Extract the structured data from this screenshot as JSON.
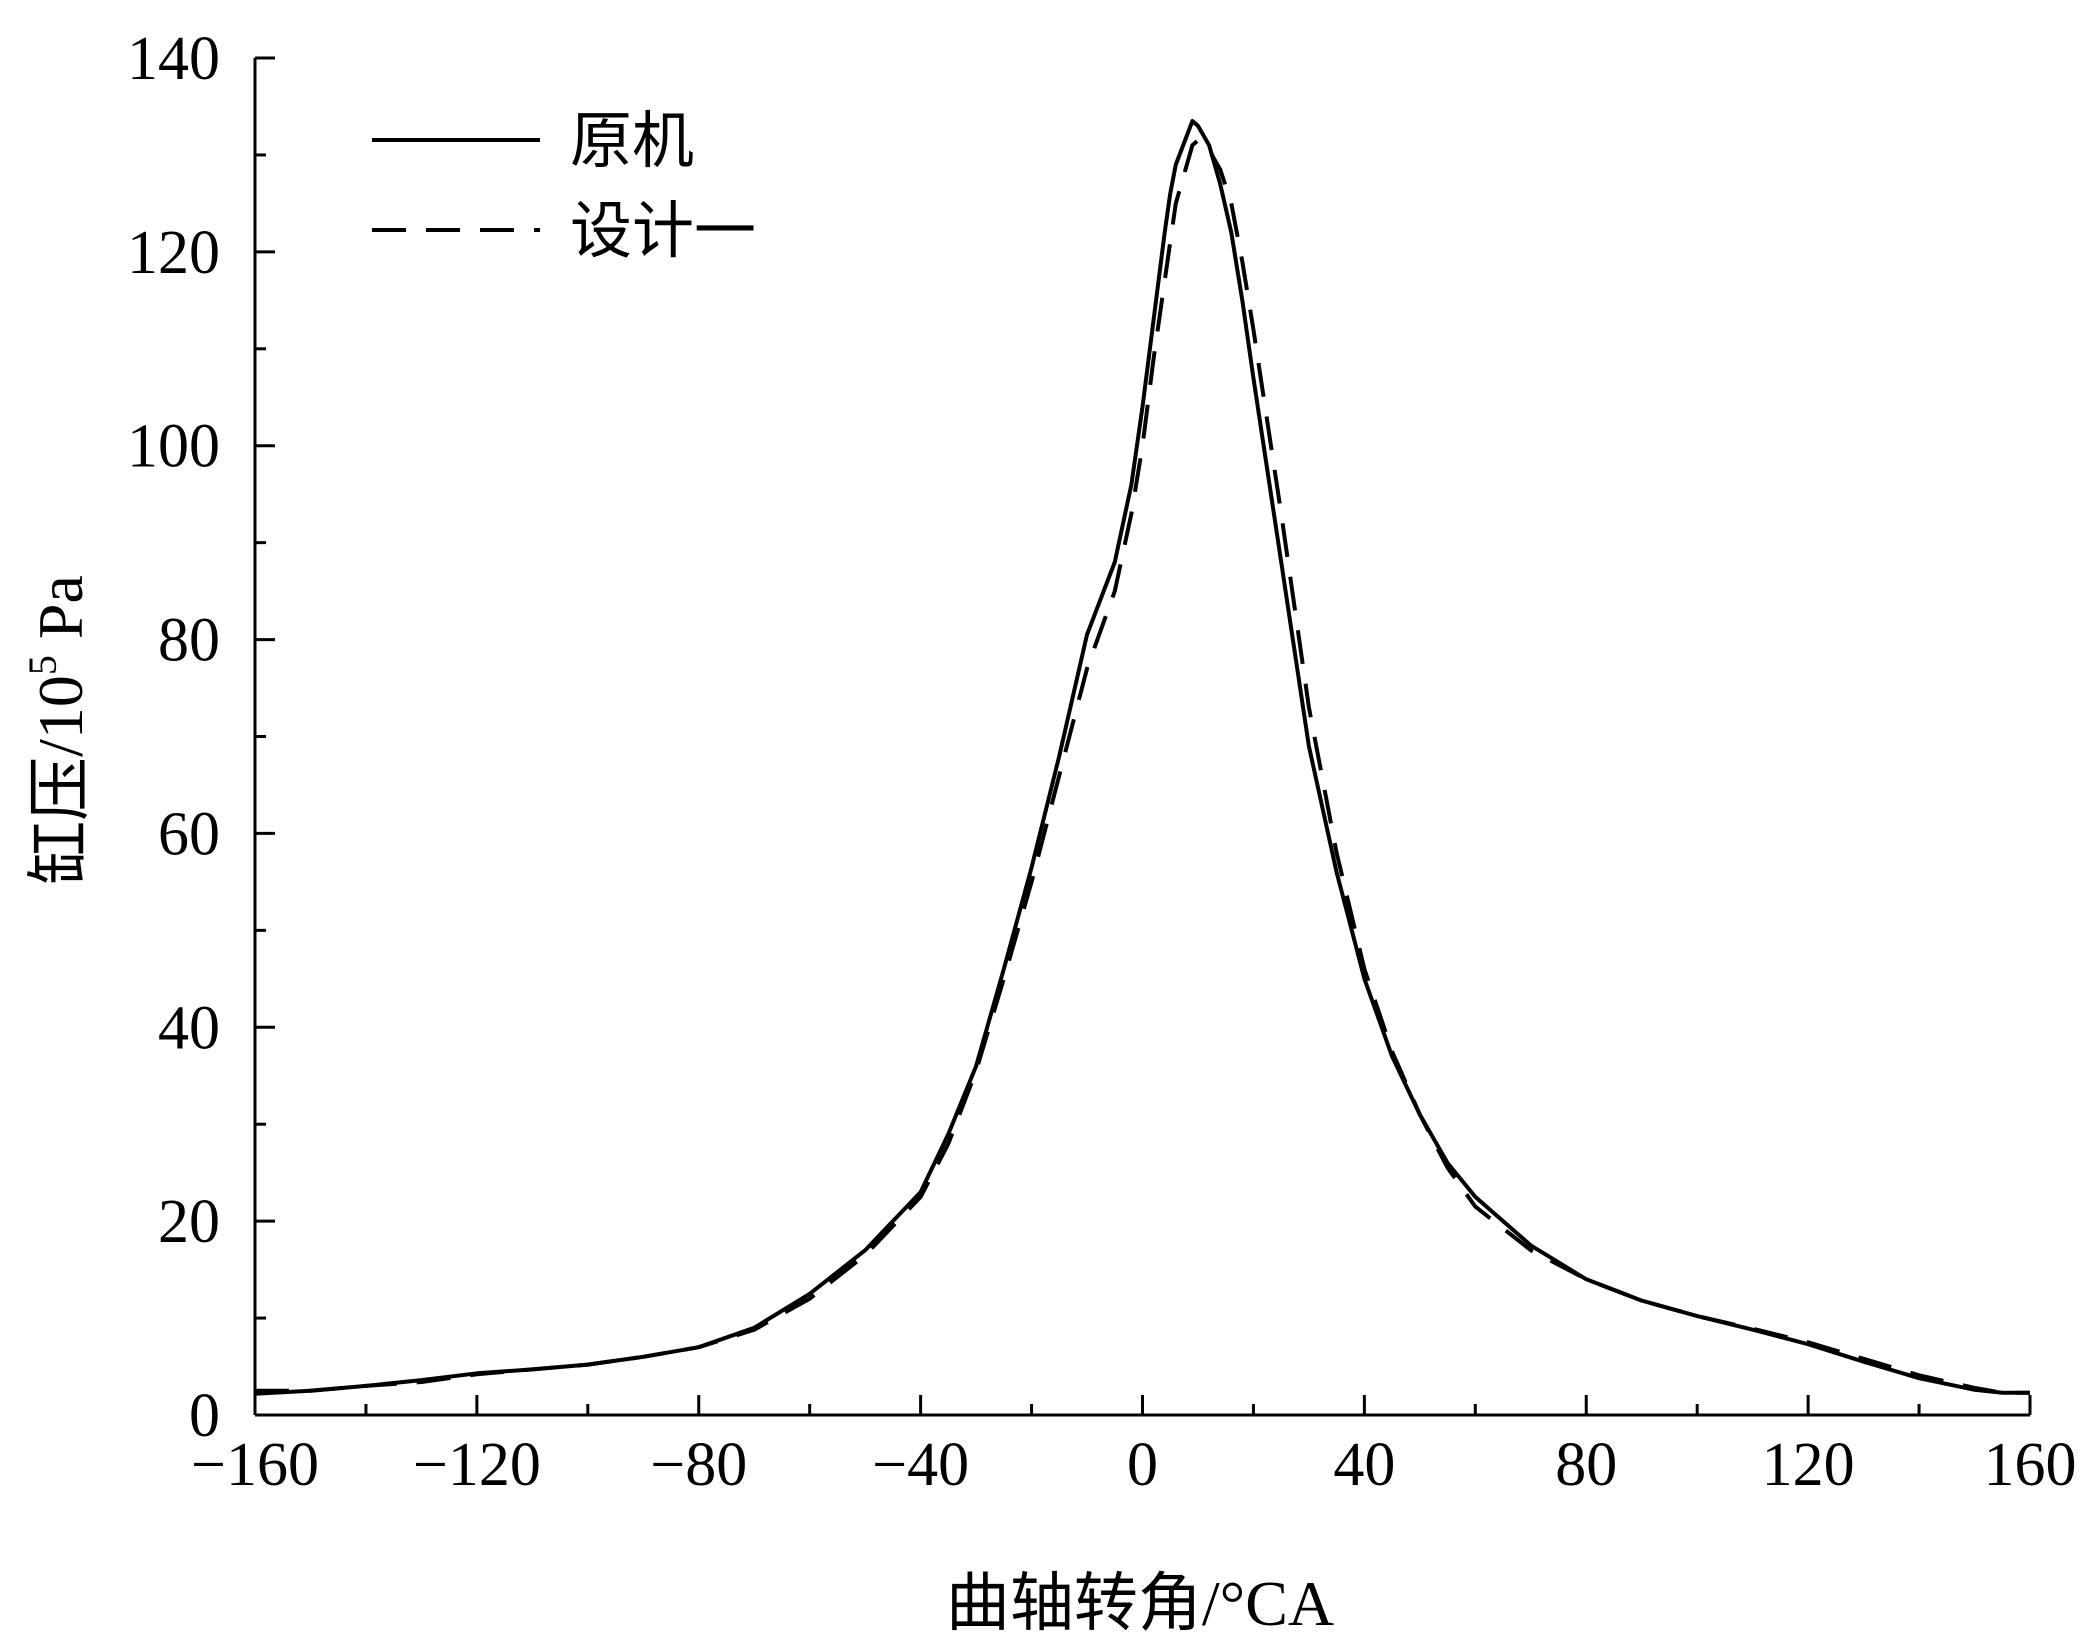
{
  "chart_data": {
    "type": "line",
    "xlabel": "曲轴转角/°CA",
    "ylabel_main": "缸压/10",
    "ylabel_sup": "5",
    "ylabel_unit": " Pa",
    "xlim": [
      -160,
      160
    ],
    "ylim": [
      0,
      140
    ],
    "x_ticks": [
      -160,
      -120,
      -80,
      -40,
      0,
      40,
      80,
      120,
      160
    ],
    "x_tick_labels": [
      "−160",
      "−120",
      "−80",
      "−40",
      "0",
      "40",
      "80",
      "120",
      "160"
    ],
    "y_ticks": [
      0,
      20,
      40,
      60,
      80,
      100,
      120,
      140
    ],
    "y_tick_labels": [
      "0",
      "20",
      "40",
      "60",
      "80",
      "100",
      "120",
      "140"
    ],
    "grid": false,
    "legend_position": "top-left",
    "series": [
      {
        "name": "原机",
        "style": "solid",
        "color": "#000000",
        "x": [
          -160,
          -150,
          -140,
          -130,
          -120,
          -110,
          -100,
          -90,
          -80,
          -70,
          -60,
          -50,
          -40,
          -35,
          -30,
          -25,
          -20,
          -15,
          -10,
          -5,
          -2,
          0,
          2,
          4,
          5,
          6,
          8,
          9,
          10,
          12,
          14,
          16,
          18,
          20,
          25,
          30,
          35,
          40,
          45,
          50,
          55,
          60,
          70,
          80,
          90,
          100,
          110,
          120,
          130,
          140,
          150,
          155,
          160
        ],
        "y": [
          2.2,
          2.5,
          3.0,
          3.6,
          4.3,
          4.7,
          5.2,
          6.0,
          7.0,
          9.0,
          12.5,
          17.0,
          23.0,
          29.0,
          36.0,
          46.0,
          56.5,
          68.0,
          80.5,
          88.0,
          96.0,
          104.0,
          113.0,
          122.0,
          126.0,
          129.0,
          132.0,
          133.5,
          133.0,
          131.0,
          127.0,
          122.0,
          115.0,
          107.0,
          88.0,
          69.0,
          56.0,
          45.0,
          37.0,
          31.0,
          26.0,
          22.5,
          17.5,
          14.0,
          11.8,
          10.2,
          8.8,
          7.3,
          5.5,
          3.8,
          2.6,
          2.3,
          2.3
        ]
      },
      {
        "name": "设计一",
        "style": "dashed",
        "color": "#000000",
        "x": [
          -160,
          -150,
          -140,
          -130,
          -120,
          -110,
          -100,
          -90,
          -80,
          -70,
          -60,
          -50,
          -40,
          -35,
          -30,
          -25,
          -20,
          -15,
          -10,
          -5,
          -2,
          0,
          2,
          4,
          5,
          6,
          8,
          9,
          10,
          12,
          14,
          16,
          18,
          20,
          25,
          30,
          35,
          40,
          45,
          50,
          55,
          60,
          70,
          80,
          90,
          100,
          110,
          120,
          130,
          140,
          150,
          155,
          160
        ],
        "y": [
          2.5,
          2.5,
          3.0,
          3.4,
          4.2,
          4.7,
          5.2,
          6.0,
          7.0,
          8.8,
          12.0,
          16.5,
          22.5,
          28.0,
          35.5,
          45.0,
          55.0,
          66.0,
          77.0,
          85.0,
          93.0,
          100.0,
          109.0,
          117.0,
          121.0,
          125.0,
          129.0,
          131.0,
          131.5,
          130.5,
          128.5,
          125.0,
          119.0,
          112.0,
          93.0,
          73.0,
          58.0,
          46.0,
          37.5,
          31.0,
          25.5,
          21.5,
          17.0,
          14.0,
          11.8,
          10.2,
          8.9,
          7.5,
          5.8,
          4.1,
          2.8,
          2.3,
          2.3
        ]
      }
    ]
  }
}
